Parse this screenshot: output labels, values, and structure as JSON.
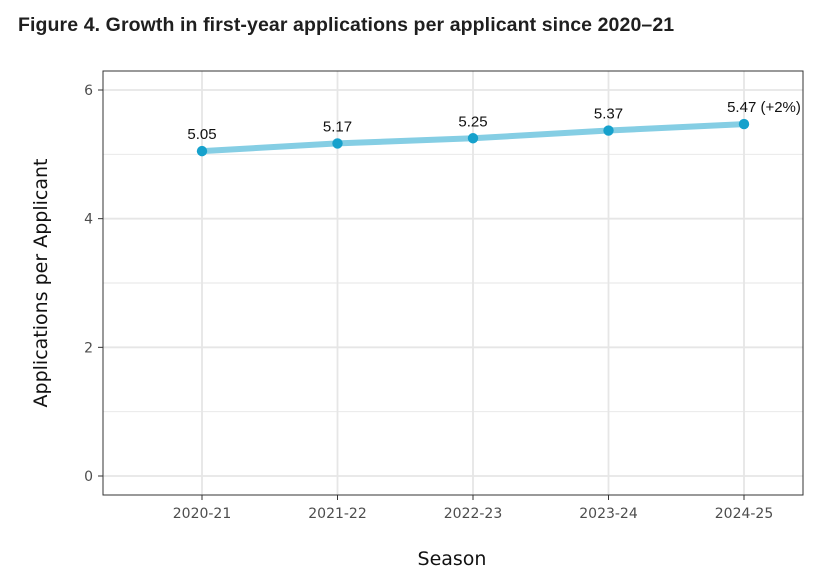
{
  "title": "Figure 4. Growth in first-year applications per applicant since 2020–21",
  "chart_data": {
    "type": "line",
    "title": "Figure 4. Growth in first-year applications per applicant since 2020–21",
    "xlabel": "Season",
    "ylabel": "Applications per Applicant",
    "categories": [
      "2020-21",
      "2021-22",
      "2022-23",
      "2023-24",
      "2024-25"
    ],
    "series": [
      {
        "values": [
          5.05,
          5.17,
          5.25,
          5.37,
          5.47
        ],
        "labels": [
          "5.05",
          "5.17",
          "5.25",
          "5.37",
          "5.47 (+2%)"
        ]
      }
    ],
    "ylim": [
      0,
      6
    ],
    "yticks": [
      0,
      2,
      4,
      6
    ],
    "grid": true,
    "legend": "none",
    "colors": {
      "line": "#85CEE4",
      "point": "#16A1CC",
      "grid": "#E6E6E6",
      "frame": "#333333"
    }
  }
}
